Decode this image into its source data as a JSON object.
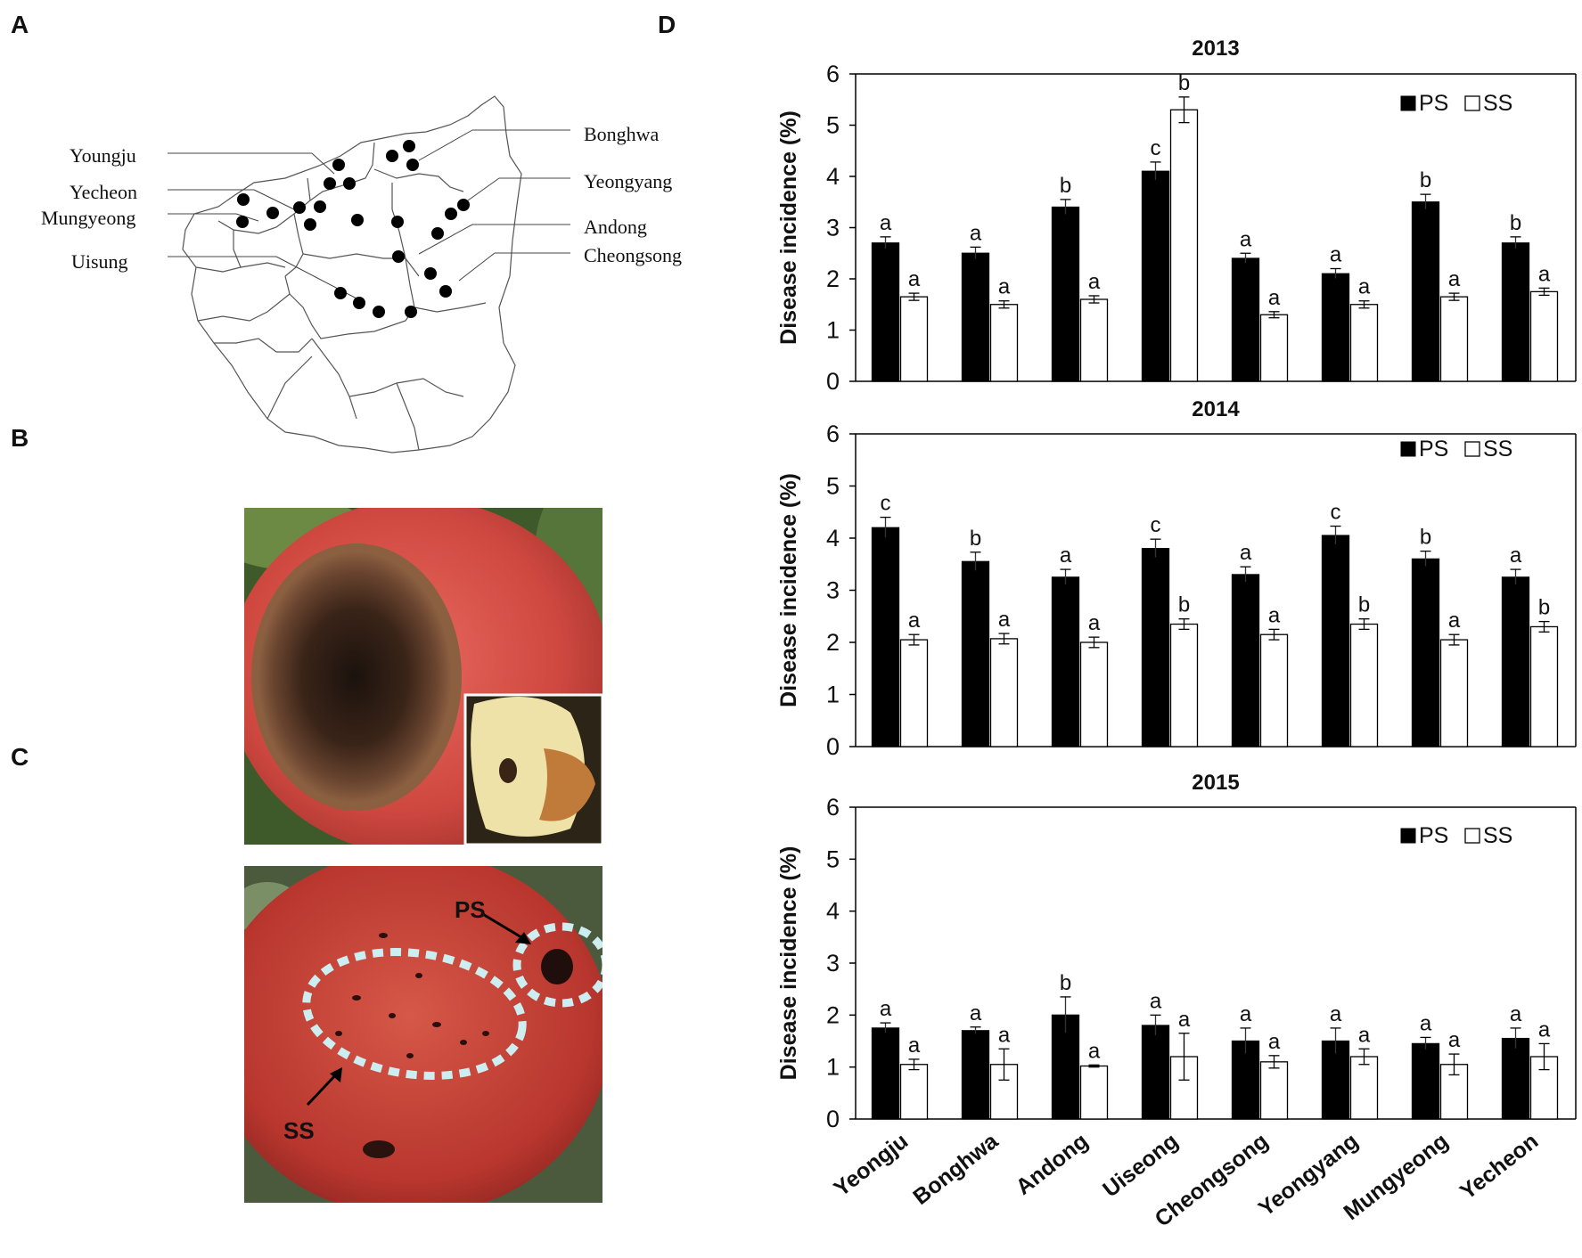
{
  "panel_letters": {
    "a": "A",
    "b": "B",
    "c": "C",
    "d": "D"
  },
  "map": {
    "left_labels": [
      "Youngju",
      "Yecheon",
      "Mungyeong",
      "Uisung"
    ],
    "right_labels": [
      "Bonghwa",
      "Yeongyang",
      "Andong",
      "Cheongsong"
    ]
  },
  "photo_c": {
    "label_ps": "PS",
    "label_ss": "SS"
  },
  "colors": {
    "ps": "#000000",
    "ss": "#ffffff",
    "apple_red": "#c8403a",
    "leaf_green": "#5a7a3a",
    "dash": "#cdeef0"
  },
  "chart_data": [
    {
      "type": "bar",
      "title": "2013",
      "ylabel": "Disease incidence (%)",
      "ylim": [
        0,
        6
      ],
      "yticks": [
        "0",
        "1",
        "2",
        "3",
        "4",
        "5",
        "6"
      ],
      "legend": {
        "ps": "PS",
        "ss": "SS",
        "placement": "top-right"
      },
      "categories": [
        "Yeongju",
        "Bonghwa",
        "Andong",
        "Uiseong",
        "Cheongsong",
        "Yeongyang",
        "Mungyeong",
        "Yecheon"
      ],
      "series": [
        {
          "name": "PS",
          "values": [
            2.7,
            2.5,
            3.4,
            4.1,
            2.4,
            2.1,
            3.5,
            2.7
          ],
          "errors": [
            0.12,
            0.12,
            0.15,
            0.18,
            0.1,
            0.1,
            0.15,
            0.12
          ],
          "letters": [
            "a",
            "a",
            "b",
            "c",
            "a",
            "a",
            "b",
            "b"
          ]
        },
        {
          "name": "SS",
          "values": [
            1.65,
            1.5,
            1.6,
            5.3,
            1.3,
            1.5,
            1.65,
            1.75
          ],
          "errors": [
            0.07,
            0.07,
            0.07,
            0.25,
            0.06,
            0.07,
            0.07,
            0.07
          ],
          "letters": [
            "a",
            "a",
            "a",
            "b",
            "a",
            "a",
            "a",
            "a"
          ]
        }
      ]
    },
    {
      "type": "bar",
      "title": "2014",
      "ylabel": "Disease incidence (%)",
      "ylim": [
        0,
        6
      ],
      "yticks": [
        "0",
        "1",
        "2",
        "3",
        "4",
        "5",
        "6"
      ],
      "legend": {
        "ps": "PS",
        "ss": "SS",
        "placement": "top-right"
      },
      "categories": [
        "Yeongju",
        "Bonghwa",
        "Andong",
        "Uiseong",
        "Cheongsong",
        "Yeongyang",
        "Mungyeong",
        "Yecheon"
      ],
      "series": [
        {
          "name": "PS",
          "values": [
            4.2,
            3.55,
            3.25,
            3.8,
            3.3,
            4.05,
            3.6,
            3.25
          ],
          "errors": [
            0.2,
            0.18,
            0.15,
            0.18,
            0.15,
            0.18,
            0.15,
            0.15
          ],
          "letters": [
            "c",
            "b",
            "a",
            "c",
            "a",
            "c",
            "b",
            "a"
          ]
        },
        {
          "name": "SS",
          "values": [
            2.05,
            2.07,
            2.0,
            2.35,
            2.15,
            2.35,
            2.05,
            2.3
          ],
          "errors": [
            0.1,
            0.1,
            0.1,
            0.1,
            0.1,
            0.1,
            0.1,
            0.1
          ],
          "letters": [
            "a",
            "a",
            "a",
            "b",
            "a",
            "b",
            "a",
            "b"
          ]
        }
      ]
    },
    {
      "type": "bar",
      "title": "2015",
      "ylabel": "Disease incidence (%)",
      "ylim": [
        0,
        6
      ],
      "yticks": [
        "0",
        "1",
        "2",
        "3",
        "4",
        "5",
        "6"
      ],
      "legend": {
        "ps": "PS",
        "ss": "SS",
        "placement": "top-right"
      },
      "categories": [
        "Yeongju",
        "Bonghwa",
        "Andong",
        "Uiseong",
        "Cheongsong",
        "Yeongyang",
        "Mungyeong",
        "Yecheon"
      ],
      "series": [
        {
          "name": "PS",
          "values": [
            1.75,
            1.7,
            2.0,
            1.8,
            1.5,
            1.5,
            1.45,
            1.55
          ],
          "errors": [
            0.1,
            0.07,
            0.35,
            0.2,
            0.25,
            0.25,
            0.12,
            0.2
          ],
          "letters": [
            "a",
            "a",
            "b",
            "a",
            "a",
            "a",
            "a",
            "a"
          ]
        },
        {
          "name": "SS",
          "values": [
            1.05,
            1.05,
            1.02,
            1.2,
            1.1,
            1.2,
            1.05,
            1.2
          ],
          "errors": [
            0.1,
            0.3,
            0.02,
            0.45,
            0.12,
            0.15,
            0.2,
            0.25
          ],
          "letters": [
            "a",
            "a",
            "a",
            "a",
            "a",
            "a",
            "a",
            "a"
          ]
        }
      ]
    }
  ]
}
